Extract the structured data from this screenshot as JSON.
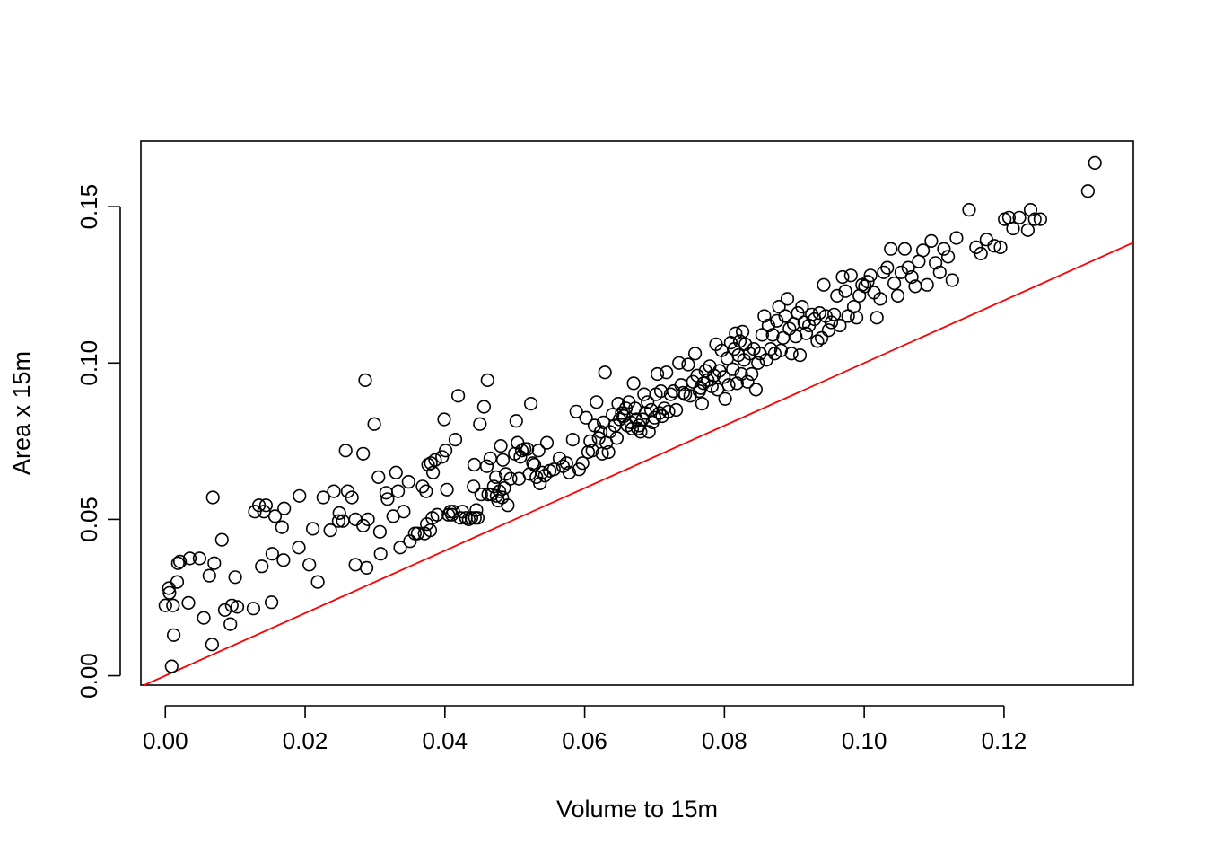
{
  "chart_data": {
    "type": "scatter",
    "title": "",
    "xlabel": "Volume to 15m",
    "ylabel": "Area x 15m",
    "xlim": [
      -0.0035,
      0.1385
    ],
    "ylim": [
      -0.003,
      0.171
    ],
    "x_ticks": [
      0.0,
      0.02,
      0.04,
      0.06,
      0.08,
      0.1,
      0.12
    ],
    "x_tick_labels": [
      "0.00",
      "0.02",
      "0.04",
      "0.06",
      "0.08",
      "0.10",
      "0.12"
    ],
    "y_ticks": [
      0.0,
      0.05,
      0.1,
      0.15
    ],
    "y_tick_labels": [
      "0.00",
      "0.05",
      "0.10",
      "0.15"
    ],
    "grid": false,
    "legend": "none",
    "point_color": "#000000",
    "reference_line": {
      "intercept": 0,
      "slope": 1,
      "color": "#ff0000"
    },
    "points": [
      [
        0.0,
        0.0225
      ],
      [
        0.0005,
        0.028
      ],
      [
        0.0006,
        0.0265
      ],
      [
        0.0009,
        0.003
      ],
      [
        0.0011,
        0.0225
      ],
      [
        0.0012,
        0.013
      ],
      [
        0.0017,
        0.03
      ],
      [
        0.0018,
        0.036
      ],
      [
        0.0021,
        0.0365
      ],
      [
        0.0033,
        0.0233
      ],
      [
        0.0035,
        0.0375
      ],
      [
        0.0049,
        0.0375
      ],
      [
        0.0055,
        0.0185
      ],
      [
        0.0063,
        0.032
      ],
      [
        0.0067,
        0.01
      ],
      [
        0.0068,
        0.057
      ],
      [
        0.007,
        0.036
      ],
      [
        0.0081,
        0.0435
      ],
      [
        0.0085,
        0.021
      ],
      [
        0.0093,
        0.0165
      ],
      [
        0.0095,
        0.0225
      ],
      [
        0.01,
        0.0315
      ],
      [
        0.0103,
        0.022
      ],
      [
        0.0126,
        0.0215
      ],
      [
        0.0128,
        0.0525
      ],
      [
        0.0134,
        0.0545
      ],
      [
        0.0138,
        0.035
      ],
      [
        0.0141,
        0.0525
      ],
      [
        0.0144,
        0.0545
      ],
      [
        0.0152,
        0.0235
      ],
      [
        0.0153,
        0.039
      ],
      [
        0.0157,
        0.051
      ],
      [
        0.0167,
        0.0475
      ],
      [
        0.0169,
        0.037
      ],
      [
        0.017,
        0.0535
      ],
      [
        0.0191,
        0.041
      ],
      [
        0.0192,
        0.0575
      ],
      [
        0.0206,
        0.0355
      ],
      [
        0.0211,
        0.047
      ],
      [
        0.0218,
        0.03
      ],
      [
        0.0226,
        0.057
      ],
      [
        0.0236,
        0.0465
      ],
      [
        0.0241,
        0.059
      ],
      [
        0.0248,
        0.0495
      ],
      [
        0.0249,
        0.052
      ],
      [
        0.0254,
        0.0495
      ],
      [
        0.0258,
        0.072
      ],
      [
        0.0261,
        0.059
      ],
      [
        0.0267,
        0.057
      ],
      [
        0.0272,
        0.0355
      ],
      [
        0.0272,
        0.05
      ],
      [
        0.0283,
        0.048
      ],
      [
        0.0283,
        0.071
      ],
      [
        0.0286,
        0.0945
      ],
      [
        0.0288,
        0.0345
      ],
      [
        0.029,
        0.05
      ],
      [
        0.0299,
        0.0805
      ],
      [
        0.0305,
        0.0635
      ],
      [
        0.0307,
        0.046
      ],
      [
        0.0308,
        0.039
      ],
      [
        0.0316,
        0.0585
      ],
      [
        0.0318,
        0.0565
      ],
      [
        0.0326,
        0.051
      ],
      [
        0.033,
        0.065
      ],
      [
        0.0333,
        0.059
      ],
      [
        0.0336,
        0.041
      ],
      [
        0.0341,
        0.0525
      ],
      [
        0.0348,
        0.062
      ],
      [
        0.035,
        0.043
      ],
      [
        0.0357,
        0.0455
      ],
      [
        0.0361,
        0.0455
      ],
      [
        0.0368,
        0.0605
      ],
      [
        0.0371,
        0.0455
      ],
      [
        0.0373,
        0.059
      ],
      [
        0.0374,
        0.0485
      ],
      [
        0.0376,
        0.0675
      ],
      [
        0.0379,
        0.0465
      ],
      [
        0.038,
        0.068
      ],
      [
        0.0382,
        0.0505
      ],
      [
        0.0383,
        0.065
      ],
      [
        0.0386,
        0.069
      ],
      [
        0.0389,
        0.0515
      ],
      [
        0.0396,
        0.07
      ],
      [
        0.0399,
        0.082
      ],
      [
        0.0401,
        0.072
      ],
      [
        0.0403,
        0.0595
      ],
      [
        0.0405,
        0.0515
      ],
      [
        0.0408,
        0.0525
      ],
      [
        0.041,
        0.0515
      ],
      [
        0.0412,
        0.0525
      ],
      [
        0.0415,
        0.0755
      ],
      [
        0.0419,
        0.0895
      ],
      [
        0.0422,
        0.0505
      ],
      [
        0.0425,
        0.0525
      ],
      [
        0.043,
        0.0505
      ],
      [
        0.0434,
        0.05
      ],
      [
        0.0438,
        0.0505
      ],
      [
        0.0441,
        0.0605
      ],
      [
        0.0442,
        0.0675
      ],
      [
        0.0443,
        0.0505
      ],
      [
        0.0445,
        0.053
      ],
      [
        0.0447,
        0.0505
      ],
      [
        0.045,
        0.0805
      ],
      [
        0.0452,
        0.058
      ],
      [
        0.0456,
        0.086
      ],
      [
        0.046,
        0.067
      ],
      [
        0.0461,
        0.0945
      ],
      [
        0.0462,
        0.058
      ],
      [
        0.0465,
        0.0695
      ],
      [
        0.0467,
        0.058
      ],
      [
        0.047,
        0.0605
      ],
      [
        0.0473,
        0.0635
      ],
      [
        0.0474,
        0.0575
      ],
      [
        0.0476,
        0.056
      ],
      [
        0.0478,
        0.059
      ],
      [
        0.048,
        0.0735
      ],
      [
        0.0482,
        0.057
      ],
      [
        0.0483,
        0.069
      ],
      [
        0.0485,
        0.06
      ],
      [
        0.0487,
        0.0645
      ],
      [
        0.049,
        0.0545
      ],
      [
        0.0494,
        0.063
      ],
      [
        0.05,
        0.071
      ],
      [
        0.0502,
        0.0815
      ],
      [
        0.0504,
        0.0745
      ],
      [
        0.0506,
        0.063
      ],
      [
        0.0508,
        0.07
      ],
      [
        0.051,
        0.072
      ],
      [
        0.0514,
        0.0725
      ],
      [
        0.0518,
        0.0725
      ],
      [
        0.0521,
        0.0645
      ],
      [
        0.0523,
        0.087
      ],
      [
        0.0526,
        0.068
      ],
      [
        0.0528,
        0.0675
      ],
      [
        0.0531,
        0.0635
      ],
      [
        0.0534,
        0.072
      ],
      [
        0.0536,
        0.0615
      ],
      [
        0.0539,
        0.065
      ],
      [
        0.0543,
        0.064
      ],
      [
        0.0546,
        0.0745
      ],
      [
        0.055,
        0.0655
      ],
      [
        0.0556,
        0.066
      ],
      [
        0.0564,
        0.0695
      ],
      [
        0.0569,
        0.067
      ],
      [
        0.0574,
        0.068
      ],
      [
        0.0578,
        0.065
      ],
      [
        0.0583,
        0.0755
      ],
      [
        0.0588,
        0.0845
      ],
      [
        0.0592,
        0.066
      ],
      [
        0.0597,
        0.068
      ],
      [
        0.0602,
        0.0825
      ],
      [
        0.0605,
        0.0715
      ],
      [
        0.0608,
        0.075
      ],
      [
        0.0611,
        0.072
      ],
      [
        0.0614,
        0.08
      ],
      [
        0.0617,
        0.0875
      ],
      [
        0.062,
        0.076
      ],
      [
        0.0623,
        0.078
      ],
      [
        0.0625,
        0.071
      ],
      [
        0.0627,
        0.081
      ],
      [
        0.0629,
        0.097
      ],
      [
        0.0631,
        0.0745
      ],
      [
        0.0634,
        0.0715
      ],
      [
        0.0636,
        0.078
      ],
      [
        0.064,
        0.0835
      ],
      [
        0.0643,
        0.08
      ],
      [
        0.0646,
        0.076
      ],
      [
        0.0648,
        0.087
      ],
      [
        0.065,
        0.082
      ],
      [
        0.0653,
        0.084
      ],
      [
        0.0656,
        0.083
      ],
      [
        0.0659,
        0.0855
      ],
      [
        0.0661,
        0.08
      ],
      [
        0.0663,
        0.0875
      ],
      [
        0.0666,
        0.081
      ],
      [
        0.0668,
        0.079
      ],
      [
        0.067,
        0.0935
      ],
      [
        0.0672,
        0.0855
      ],
      [
        0.0674,
        0.082
      ],
      [
        0.0676,
        0.079
      ],
      [
        0.0678,
        0.08
      ],
      [
        0.068,
        0.078
      ],
      [
        0.0683,
        0.082
      ],
      [
        0.0685,
        0.09
      ],
      [
        0.0687,
        0.084
      ],
      [
        0.069,
        0.0875
      ],
      [
        0.0692,
        0.078
      ],
      [
        0.0695,
        0.085
      ],
      [
        0.0697,
        0.081
      ],
      [
        0.07,
        0.0825
      ],
      [
        0.0702,
        0.09
      ],
      [
        0.0704,
        0.0965
      ],
      [
        0.0707,
        0.084
      ],
      [
        0.0709,
        0.091
      ],
      [
        0.0711,
        0.083
      ],
      [
        0.0714,
        0.0855
      ],
      [
        0.0717,
        0.097
      ],
      [
        0.072,
        0.0845
      ],
      [
        0.0723,
        0.09
      ],
      [
        0.0727,
        0.091
      ],
      [
        0.0731,
        0.085
      ],
      [
        0.0735,
        0.1
      ],
      [
        0.0738,
        0.093
      ],
      [
        0.0741,
        0.0905
      ],
      [
        0.0744,
        0.09
      ],
      [
        0.0748,
        0.0995
      ],
      [
        0.0751,
        0.0895
      ],
      [
        0.0755,
        0.094
      ],
      [
        0.0758,
        0.103
      ],
      [
        0.0761,
        0.096
      ],
      [
        0.0764,
        0.091
      ],
      [
        0.0766,
        0.092
      ],
      [
        0.0768,
        0.087
      ],
      [
        0.077,
        0.0935
      ],
      [
        0.0773,
        0.0975
      ],
      [
        0.0776,
        0.0945
      ],
      [
        0.0779,
        0.099
      ],
      [
        0.0782,
        0.0925
      ],
      [
        0.0785,
        0.096
      ],
      [
        0.0788,
        0.106
      ],
      [
        0.079,
        0.0915
      ],
      [
        0.0793,
        0.0975
      ],
      [
        0.0796,
        0.104
      ],
      [
        0.0799,
        0.0955
      ],
      [
        0.0801,
        0.0885
      ],
      [
        0.0804,
        0.1015
      ],
      [
        0.0806,
        0.093
      ],
      [
        0.0809,
        0.1065
      ],
      [
        0.0812,
        0.098
      ],
      [
        0.0814,
        0.1045
      ],
      [
        0.0816,
        0.1095
      ],
      [
        0.0818,
        0.0935
      ],
      [
        0.082,
        0.1025
      ],
      [
        0.0822,
        0.107
      ],
      [
        0.0824,
        0.0965
      ],
      [
        0.0826,
        0.11
      ],
      [
        0.0828,
        0.101
      ],
      [
        0.083,
        0.106
      ],
      [
        0.0833,
        0.094
      ],
      [
        0.0836,
        0.103
      ],
      [
        0.0839,
        0.0965
      ],
      [
        0.0842,
        0.1045
      ],
      [
        0.0845,
        0.0915
      ],
      [
        0.0848,
        0.1
      ],
      [
        0.0851,
        0.103
      ],
      [
        0.0854,
        0.109
      ],
      [
        0.0857,
        0.115
      ],
      [
        0.086,
        0.101
      ],
      [
        0.0863,
        0.112
      ],
      [
        0.0866,
        0.1045
      ],
      [
        0.0869,
        0.109
      ],
      [
        0.0872,
        0.103
      ],
      [
        0.0875,
        0.1135
      ],
      [
        0.0878,
        0.118
      ],
      [
        0.0881,
        0.104
      ],
      [
        0.0884,
        0.108
      ],
      [
        0.0887,
        0.115
      ],
      [
        0.089,
        0.1205
      ],
      [
        0.0893,
        0.111
      ],
      [
        0.0896,
        0.103
      ],
      [
        0.0899,
        0.1125
      ],
      [
        0.0902,
        0.1085
      ],
      [
        0.0905,
        0.116
      ],
      [
        0.0908,
        0.1025
      ],
      [
        0.0911,
        0.118
      ],
      [
        0.0914,
        0.113
      ],
      [
        0.0917,
        0.1095
      ],
      [
        0.0921,
        0.112
      ],
      [
        0.0925,
        0.1155
      ],
      [
        0.0929,
        0.114
      ],
      [
        0.0933,
        0.107
      ],
      [
        0.0936,
        0.116
      ],
      [
        0.0939,
        0.108
      ],
      [
        0.0942,
        0.125
      ],
      [
        0.0945,
        0.115
      ],
      [
        0.0949,
        0.1105
      ],
      [
        0.0953,
        0.113
      ],
      [
        0.0957,
        0.1155
      ],
      [
        0.0961,
        0.1215
      ],
      [
        0.0965,
        0.112
      ],
      [
        0.0969,
        0.1275
      ],
      [
        0.0973,
        0.123
      ],
      [
        0.0977,
        0.115
      ],
      [
        0.0981,
        0.128
      ],
      [
        0.0985,
        0.118
      ],
      [
        0.0989,
        0.1145
      ],
      [
        0.0993,
        0.1215
      ],
      [
        0.0997,
        0.125
      ],
      [
        0.1001,
        0.1245
      ],
      [
        0.1005,
        0.126
      ],
      [
        0.1009,
        0.128
      ],
      [
        0.1014,
        0.1225
      ],
      [
        0.1018,
        0.1145
      ],
      [
        0.1023,
        0.1205
      ],
      [
        0.1028,
        0.129
      ],
      [
        0.1033,
        0.1305
      ],
      [
        0.1038,
        0.1365
      ],
      [
        0.1043,
        0.1255
      ],
      [
        0.1048,
        0.1215
      ],
      [
        0.1053,
        0.129
      ],
      [
        0.1058,
        0.1365
      ],
      [
        0.1063,
        0.1305
      ],
      [
        0.1068,
        0.1275
      ],
      [
        0.1073,
        0.1245
      ],
      [
        0.1078,
        0.1325
      ],
      [
        0.1084,
        0.136
      ],
      [
        0.109,
        0.125
      ],
      [
        0.1096,
        0.139
      ],
      [
        0.1102,
        0.132
      ],
      [
        0.1108,
        0.129
      ],
      [
        0.1114,
        0.1365
      ],
      [
        0.112,
        0.134
      ],
      [
        0.1126,
        0.1265
      ],
      [
        0.1132,
        0.14
      ],
      [
        0.115,
        0.149
      ],
      [
        0.116,
        0.137
      ],
      [
        0.1167,
        0.135
      ],
      [
        0.1175,
        0.1395
      ],
      [
        0.1186,
        0.1375
      ],
      [
        0.1195,
        0.137
      ],
      [
        0.1201,
        0.146
      ],
      [
        0.1207,
        0.1465
      ],
      [
        0.1213,
        0.143
      ],
      [
        0.1222,
        0.1465
      ],
      [
        0.1234,
        0.1425
      ],
      [
        0.1238,
        0.149
      ],
      [
        0.1244,
        0.146
      ],
      [
        0.1252,
        0.146
      ],
      [
        0.132,
        0.155
      ],
      [
        0.133,
        0.164
      ]
    ]
  }
}
